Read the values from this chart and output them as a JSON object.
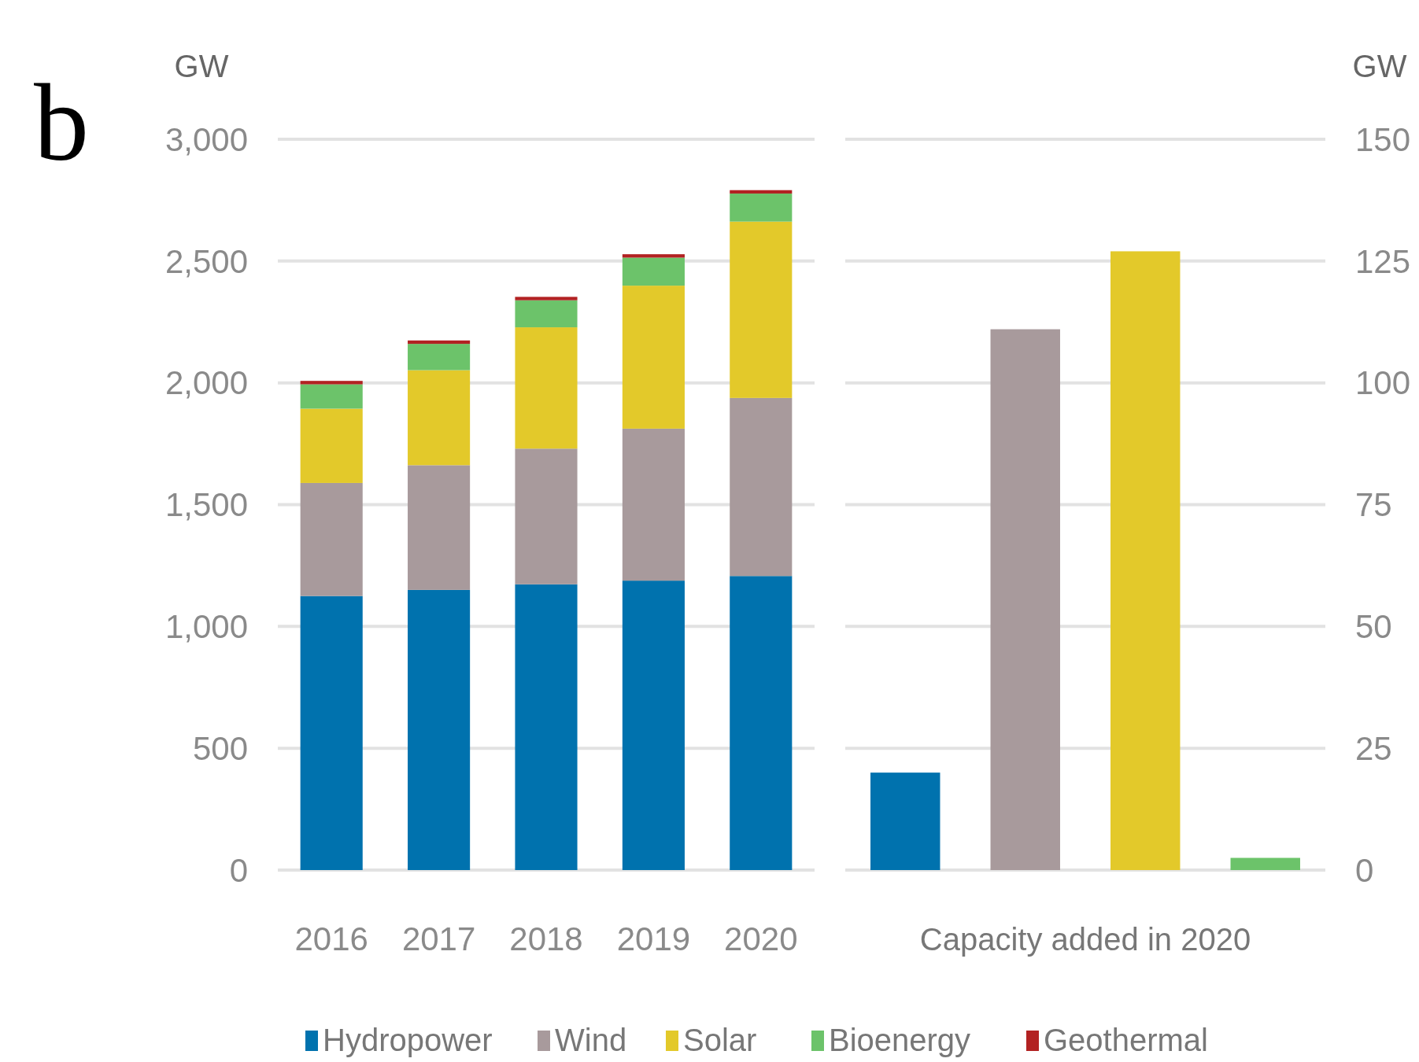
{
  "chart_data": [
    {
      "type": "bar",
      "stacked": true,
      "categories": [
        "2016",
        "2017",
        "2018",
        "2019",
        "2020"
      ],
      "ylabel": "GW",
      "annotations": [
        "b"
      ],
      "ylim": [
        0,
        3000
      ],
      "yticks": [
        0,
        {
          "value": 500,
          "label": "500"
        },
        {
          "value": 1000,
          "label": "1,000"
        },
        {
          "value": 1500,
          "label": "1,500"
        },
        {
          "value": 2000,
          "label": "2,000"
        },
        {
          "value": 2500,
          "label": "2,500"
        },
        {
          "value": 3000,
          "label": "3,000"
        }
      ],
      "grid": "y",
      "legend": "bottom",
      "series": [
        {
          "name": "Hydropower",
          "color": "#0072ae",
          "values": [
            1125,
            1150,
            1173,
            1188,
            1207
          ]
        },
        {
          "name": "Wind",
          "color": "#a89a9c",
          "values": [
            464,
            512,
            557,
            624,
            731
          ]
        },
        {
          "name": "Solar",
          "color": "#e3c92a",
          "values": [
            305,
            390,
            498,
            587,
            724
          ]
        },
        {
          "name": "Bioenergy",
          "color": "#6cc36a",
          "values": [
            100,
            108,
            111,
            115,
            115
          ]
        },
        {
          "name": "Geothermal",
          "color": "#b22222",
          "values": [
            14,
            14,
            14,
            14,
            14
          ]
        }
      ]
    },
    {
      "type": "bar",
      "categories": [
        null,
        null,
        null,
        null
      ],
      "xlabel": "Capacity added in 2020",
      "ylabel": "GW",
      "ylim": [
        0,
        150
      ],
      "yticks": [
        0,
        25,
        50,
        75,
        100,
        125,
        150
      ],
      "grid": "y",
      "values": [
        20,
        111,
        127,
        2.5
      ],
      "colors": [
        "#0072ae",
        "#a89a9c",
        "#e3c92a",
        "#6cc36a"
      ]
    }
  ]
}
